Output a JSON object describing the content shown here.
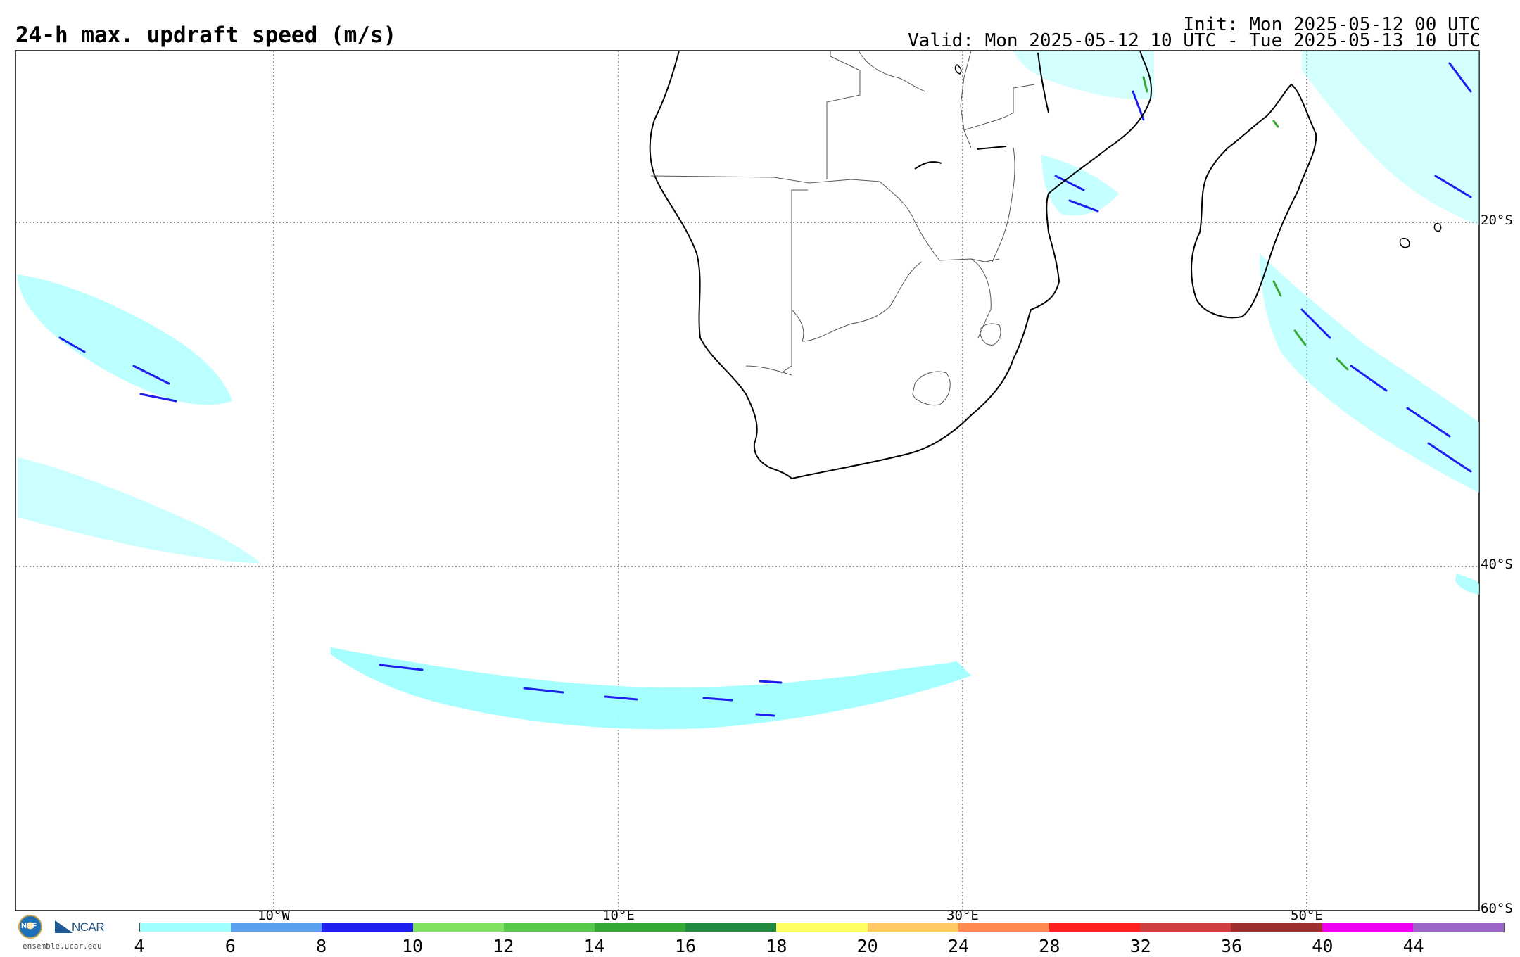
{
  "header": {
    "title": "24-h max. updraft speed (m/s)",
    "init": "Init: Mon 2025-05-12 00 UTC",
    "valid": "Valid: Mon 2025-05-12 10 UTC - Tue 2025-05-13 10 UTC"
  },
  "map": {
    "lat_labels": [
      "20°S",
      "40°S",
      "60°S"
    ],
    "lon_labels": [
      "10°W",
      "10°E",
      "30°E",
      "50°E"
    ],
    "gridlines": "dotted"
  },
  "colorbar": {
    "ticks": [
      "4",
      "6",
      "8",
      "10",
      "12",
      "14",
      "16",
      "18",
      "20",
      "24",
      "28",
      "32",
      "36",
      "40",
      "44"
    ],
    "colors": [
      "#a0ffff",
      "#5aa0f0",
      "#1e1ef0",
      "#80e060",
      "#56c84a",
      "#36a836",
      "#208a40",
      "#ffff64",
      "#ffc864",
      "#ff8a50",
      "#ff2020",
      "#d04040",
      "#a03030",
      "#f000f0",
      "#9b64c8"
    ]
  },
  "footer": {
    "logo_nsf": "NSF",
    "logo_ncar": "NCAR",
    "url": "ensemble.ucar.edu"
  }
}
